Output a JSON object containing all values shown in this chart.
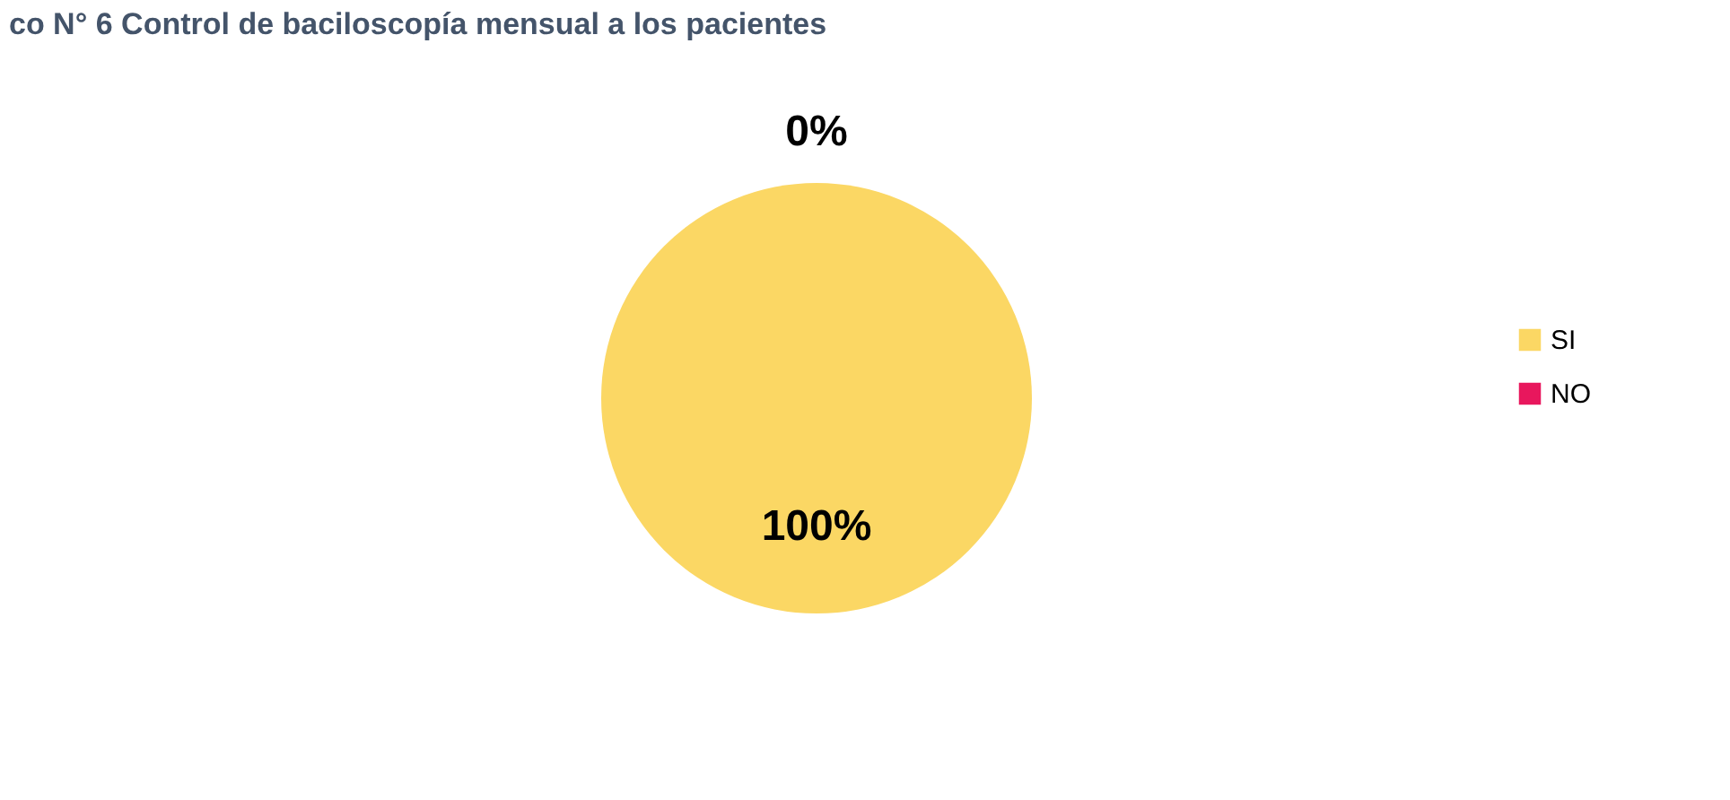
{
  "chart_data": {
    "type": "pie",
    "title": "co N° 6 Control de baciloscopía mensual a los pacientes",
    "categories": [
      "SI",
      "NO"
    ],
    "values": [
      100,
      0
    ],
    "colors": [
      "#fbd764",
      "#e8175d"
    ],
    "value_labels": [
      "100%",
      "0%"
    ],
    "legend": "right"
  }
}
